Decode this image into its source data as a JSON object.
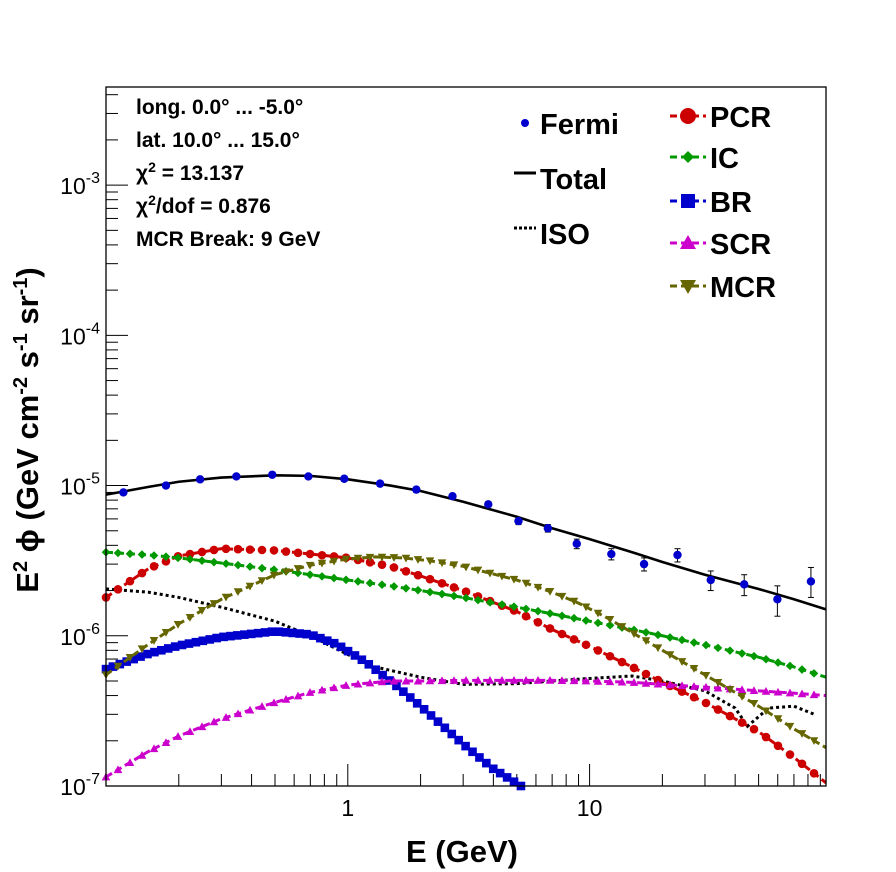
{
  "chart_data": {
    "type": "scatter",
    "xlabel": "E (GeV)",
    "ylabel": "E^2 ϕ (GeV cm^-2 s^-1 sr^-1)",
    "xscale": "log",
    "yscale": "log",
    "xlim": [
      0.1,
      95
    ],
    "ylim": [
      1e-07,
      0.0045
    ],
    "x_ticks": [
      1,
      10
    ],
    "x_tick_labels": [
      "1",
      "10"
    ],
    "y_ticks": [
      1e-07,
      1e-06,
      1e-05,
      0.0001,
      0.001
    ],
    "y_tick_labels": [
      {
        "base": "10",
        "exp": "-7"
      },
      {
        "base": "10",
        "exp": "-6"
      },
      {
        "base": "10",
        "exp": "-5"
      },
      {
        "base": "10",
        "exp": "-4"
      },
      {
        "base": "10",
        "exp": "-3"
      }
    ],
    "annotations": [
      {
        "text": "long. 0.0° ... -5.0°"
      },
      {
        "text": "lat. 10.0° ... 15.0°"
      },
      {
        "text": "χ",
        "sup": "2",
        "rest": " = 13.137"
      },
      {
        "text": "χ",
        "sup": "2",
        "rest": "/dof = 0.876"
      },
      {
        "text": "MCR Break:  9 GeV"
      }
    ],
    "legend_placement": "top-right",
    "legend": [
      {
        "label": "Fermi",
        "style": "point"
      },
      {
        "label": "Total",
        "style": "solid"
      },
      {
        "label": "ISO",
        "style": "dotted"
      },
      {
        "label": "PCR",
        "style": "circle"
      },
      {
        "label": "IC",
        "style": "diamond"
      },
      {
        "label": "BR",
        "style": "square"
      },
      {
        "label": "SCR",
        "style": "triangle-up"
      },
      {
        "label": "MCR",
        "style": "triangle-down"
      }
    ],
    "fermi": {
      "name": "Fermi",
      "color": "#0000cc",
      "x": [
        0.118,
        0.177,
        0.245,
        0.346,
        0.487,
        0.687,
        0.967,
        1.36,
        1.92,
        2.71,
        3.81,
        5.08,
        6.72,
        8.85,
        12.3,
        16.8,
        23.1,
        31.7,
        43.6,
        59.8,
        82.3
      ],
      "y": [
        9e-06,
        1e-05,
        1.1e-05,
        1.15e-05,
        1.18e-05,
        1.15e-05,
        1.11e-05,
        1.03e-05,
        9.4e-06,
        8.5e-06,
        7.5e-06,
        5.8e-06,
        5.2e-06,
        4.1e-06,
        3.5e-06,
        3e-06,
        3.45e-06,
        2.35e-06,
        2.2e-06,
        1.75e-06,
        2.3e-06
      ],
      "y_err_low": [
        8.7e-06,
        9.7e-06,
        1.07e-05,
        1.12e-05,
        1.15e-05,
        1.12e-05,
        1.08e-05,
        1e-05,
        9.1e-06,
        8.2e-06,
        7.2e-06,
        5.5e-06,
        4.9e-06,
        3.8e-06,
        3.2e-06,
        2.7e-06,
        3.1e-06,
        2e-06,
        1.85e-06,
        1.35e-06,
        1.8e-06
      ],
      "y_err_high": [
        9.3e-06,
        1.03e-05,
        1.13e-05,
        1.18e-05,
        1.21e-05,
        1.18e-05,
        1.14e-05,
        1.06e-05,
        9.7e-06,
        8.8e-06,
        7.8e-06,
        6.1e-06,
        5.5e-06,
        4.4e-06,
        3.8e-06,
        3.3e-06,
        3.8e-06,
        2.7e-06,
        2.55e-06,
        2.15e-06,
        2.85e-06
      ]
    },
    "series": [
      {
        "name": "Total",
        "color": "#000000",
        "line": "solid",
        "marker": "none",
        "x": [
          0.1,
          0.15,
          0.2,
          0.3,
          0.5,
          0.7,
          1,
          1.5,
          2,
          3,
          5,
          7,
          10,
          15,
          20,
          30,
          50,
          70,
          95
        ],
        "y": [
          8.7e-06,
          9.8e-06,
          1.06e-05,
          1.13e-05,
          1.17e-05,
          1.16e-05,
          1.1e-05,
          1e-05,
          9.2e-06,
          7.8e-06,
          6.2e-06,
          5.2e-06,
          4.4e-06,
          3.6e-06,
          3.1e-06,
          2.55e-06,
          2.05e-06,
          1.75e-06,
          1.5e-06
        ]
      },
      {
        "name": "ISO",
        "color": "#000000",
        "line": "dotted",
        "marker": "none",
        "x": [
          0.1,
          0.15,
          0.2,
          0.3,
          0.5,
          0.7,
          1,
          1.3,
          2,
          3,
          5,
          7,
          10,
          15,
          20,
          30,
          40,
          45,
          55,
          70,
          85
        ],
        "y": [
          2.05e-06,
          1.95e-06,
          1.8e-06,
          1.55e-06,
          1.25e-06,
          1e-06,
          7.5e-07,
          6.2e-07,
          5.3e-07,
          4.75e-07,
          4.8e-07,
          5e-07,
          5.2e-07,
          5.4e-07,
          5e-07,
          4.3e-07,
          3.3e-07,
          2.5e-07,
          3.3e-07,
          3.4e-07,
          3e-07
        ]
      },
      {
        "name": "PCR",
        "color": "#cc0000",
        "line": "dashed",
        "marker": "circle",
        "x": [
          0.1,
          0.15,
          0.2,
          0.3,
          0.5,
          0.7,
          1,
          1.5,
          2,
          3,
          5,
          7,
          10,
          15,
          20,
          30,
          50,
          70,
          95
        ],
        "y": [
          1.8e-06,
          2.8e-06,
          3.4e-06,
          3.8e-06,
          3.7e-06,
          3.5e-06,
          3.3e-06,
          2.9e-06,
          2.5e-06,
          2e-06,
          1.45e-06,
          1.1e-06,
          8.5e-07,
          6.2e-07,
          4.9e-07,
          3.6e-07,
          2.3e-07,
          1.55e-07,
          1.05e-07
        ]
      },
      {
        "name": "IC",
        "color": "#009900",
        "line": "dashed",
        "marker": "diamond",
        "x": [
          0.1,
          0.15,
          0.2,
          0.3,
          0.5,
          0.7,
          1,
          1.5,
          2,
          3,
          5,
          7,
          10,
          15,
          20,
          30,
          50,
          70,
          95
        ],
        "y": [
          3.6e-06,
          3.45e-06,
          3.3e-06,
          3.05e-06,
          2.75e-06,
          2.55e-06,
          2.35e-06,
          2.15e-06,
          2e-06,
          1.8e-06,
          1.55e-06,
          1.4e-06,
          1.25e-06,
          1.1e-06,
          1e-06,
          8.7e-07,
          7.2e-07,
          6.2e-07,
          5.3e-07
        ]
      },
      {
        "name": "BR",
        "color": "#0000cc",
        "line": "dashed",
        "marker": "square",
        "x": [
          0.1,
          0.15,
          0.2,
          0.3,
          0.5,
          0.7,
          0.9,
          1.2,
          1.6,
          2,
          3,
          4,
          5.2
        ],
        "y": [
          6e-07,
          7.6e-07,
          8.6e-07,
          9.8e-07,
          1.07e-06,
          1.02e-06,
          8.8e-07,
          6.6e-07,
          4.6e-07,
          3.4e-07,
          1.9e-07,
          1.3e-07,
          1e-07
        ]
      },
      {
        "name": "SCR",
        "color": "#cc00cc",
        "line": "dashed",
        "marker": "triangle-up",
        "x": [
          0.1,
          0.15,
          0.2,
          0.3,
          0.5,
          0.7,
          1,
          1.5,
          2,
          3,
          5,
          7,
          10,
          15,
          20,
          30,
          50,
          70,
          95
        ],
        "y": [
          1.15e-07,
          1.7e-07,
          2.15e-07,
          2.8e-07,
          3.6e-07,
          4.2e-07,
          4.7e-07,
          5e-07,
          5e-07,
          5.05e-07,
          5.05e-07,
          5.05e-07,
          5e-07,
          4.9e-07,
          4.75e-07,
          4.55e-07,
          4.3e-07,
          4.15e-07,
          4e-07
        ]
      },
      {
        "name": "MCR",
        "color": "#666600",
        "line": "dashed",
        "marker": "triangle-down",
        "x": [
          0.1,
          0.15,
          0.2,
          0.3,
          0.5,
          0.7,
          1,
          1.3,
          1.7,
          2.2,
          3,
          5,
          7,
          9,
          12,
          15,
          20,
          30,
          50,
          70,
          95
        ],
        "y": [
          5.5e-07,
          8.8e-07,
          1.2e-06,
          1.75e-06,
          2.55e-06,
          2.95e-06,
          3.25e-06,
          3.35e-06,
          3.3e-06,
          3.15e-06,
          2.9e-06,
          2.35e-06,
          1.95e-06,
          1.65e-06,
          1.3e-06,
          1.05e-06,
          8e-07,
          5.5e-07,
          3.4e-07,
          2.4e-07,
          1.8e-07
        ]
      }
    ]
  }
}
